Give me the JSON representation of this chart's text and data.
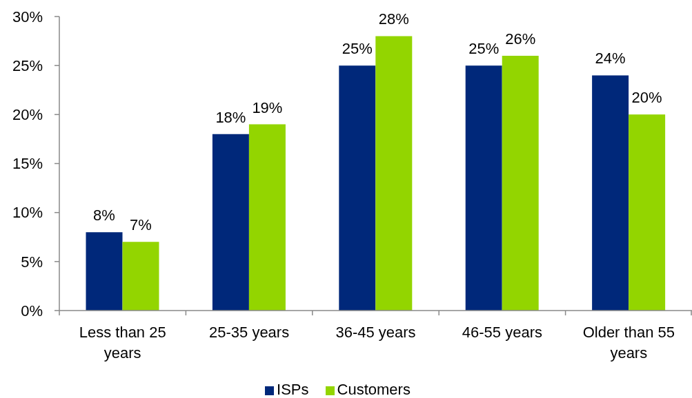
{
  "chart_data": {
    "type": "bar",
    "categories": [
      "Less than 25 years",
      "25-35 years",
      "36-45 years",
      "46-55 years",
      "Older than 55 years"
    ],
    "series": [
      {
        "name": "ISPs",
        "color": "#00287a",
        "values": [
          8,
          18,
          25,
          25,
          24
        ],
        "value_labels": [
          "8%",
          "18%",
          "25%",
          "25%",
          "24%"
        ]
      },
      {
        "name": "Customers",
        "color": "#93d500",
        "values": [
          7,
          19,
          28,
          26,
          20
        ],
        "value_labels": [
          "7%",
          "19%",
          "28%",
          "26%",
          "20%"
        ]
      }
    ],
    "ylim": [
      0,
      30
    ],
    "yticks": [
      {
        "value": 0,
        "label": "0%"
      },
      {
        "value": 5,
        "label": "5%"
      },
      {
        "value": 10,
        "label": "10%"
      },
      {
        "value": 15,
        "label": "15%"
      },
      {
        "value": 20,
        "label": "20%"
      },
      {
        "value": 25,
        "label": "25%"
      },
      {
        "value": 30,
        "label": "30%"
      }
    ],
    "legend": "bottom"
  }
}
